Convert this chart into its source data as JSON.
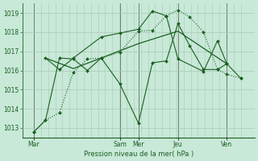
{
  "bg_color": "#c8e8d8",
  "grid_color": "#a8c8b8",
  "line_color": "#1a6020",
  "ylabel": "Pression niveau de la mer( hPa )",
  "ylim": [
    1012.5,
    1019.5
  ],
  "yticks": [
    1013,
    1014,
    1015,
    1016,
    1017,
    1018,
    1019
  ],
  "xtick_labels": [
    "Mar",
    "Sam",
    "Mer",
    "Jeu",
    "Ven"
  ],
  "xtick_positions": [
    0.05,
    0.42,
    0.5,
    0.67,
    0.88
  ],
  "series": [
    {
      "x": [
        0.05,
        0.1,
        0.16,
        0.22,
        0.28,
        0.34,
        0.42,
        0.5,
        0.56,
        0.62,
        0.67,
        0.72,
        0.78,
        0.84,
        0.88,
        0.94
      ],
      "y": [
        1012.8,
        1013.4,
        1013.8,
        1015.9,
        1016.6,
        1016.65,
        1016.95,
        1018.05,
        1018.1,
        1018.85,
        1019.15,
        1018.8,
        1018.0,
        1016.05,
        1015.8,
        1015.6
      ],
      "style": "dotted",
      "marker": "D",
      "markersize": 2.0
    },
    {
      "x": [
        0.05,
        0.1,
        0.16,
        0.22,
        0.28,
        0.34,
        0.42,
        0.5,
        0.56,
        0.62,
        0.67,
        0.72,
        0.78,
        0.84,
        0.88,
        0.94
      ],
      "y": [
        1012.8,
        1013.4,
        1016.65,
        1016.6,
        1016.0,
        1016.65,
        1015.3,
        1013.25,
        1016.4,
        1016.5,
        1018.45,
        1017.3,
        1016.05,
        1016.05,
        1016.35,
        1015.6
      ],
      "style": "solid",
      "marker": "D",
      "markersize": 2.0
    },
    {
      "x": [
        0.1,
        0.16,
        0.22,
        0.34,
        0.42,
        0.5,
        0.56,
        0.62,
        0.67,
        0.78,
        0.84,
        0.88
      ],
      "y": [
        1016.65,
        1016.05,
        1016.65,
        1017.75,
        1017.95,
        1018.15,
        1019.1,
        1018.85,
        1016.6,
        1015.95,
        1017.55,
        1016.35
      ],
      "style": "solid",
      "marker": "D",
      "markersize": 2.0
    },
    {
      "x": [
        0.1,
        0.22,
        0.34,
        0.5,
        0.67,
        0.88
      ],
      "y": [
        1016.65,
        1016.1,
        1016.65,
        1017.4,
        1018.05,
        1016.35
      ],
      "style": "solid",
      "marker": null,
      "markersize": 0
    }
  ],
  "vline_positions": [
    0.05,
    0.42,
    0.5,
    0.67,
    0.88
  ],
  "vline_color": "#607060",
  "figsize": [
    3.2,
    2.0
  ],
  "dpi": 100
}
